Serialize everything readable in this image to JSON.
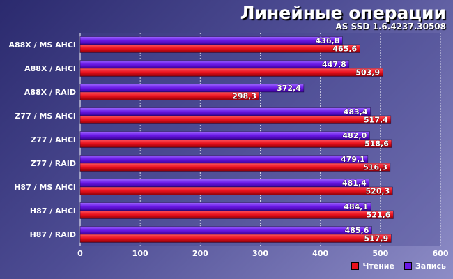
{
  "header": {
    "title": "Линейные операции",
    "subtitle": "AS SSD 1.6.4237.30508"
  },
  "legend": {
    "read_label": "Чтение",
    "write_label": "Запись"
  },
  "colors": {
    "read": "#e8101c",
    "write": "#6a18e6"
  },
  "chart_data": {
    "type": "bar",
    "orientation": "horizontal",
    "categories": [
      "A88X / MS AHCI",
      "A88X / AHCI",
      "A88X / RAID",
      "Z77 / MS AHCI",
      "Z77 / AHCI",
      "Z77 / RAID",
      "H87 / MS AHCI",
      "H87 / AHCI",
      "H87 / RAID"
    ],
    "series": [
      {
        "name": "Запись",
        "values": [
          436.8,
          447.8,
          372.4,
          483.4,
          482.0,
          479.1,
          481.4,
          484.1,
          485.6
        ]
      },
      {
        "name": "Чтение",
        "values": [
          465.6,
          503.9,
          298.3,
          517.4,
          518.6,
          516.3,
          520.3,
          521.6,
          517.9
        ]
      }
    ],
    "xlim": [
      0,
      600
    ],
    "xticks": [
      0,
      100,
      200,
      300,
      400,
      500,
      600
    ],
    "grid": true,
    "legend_position": "bottom-right"
  }
}
